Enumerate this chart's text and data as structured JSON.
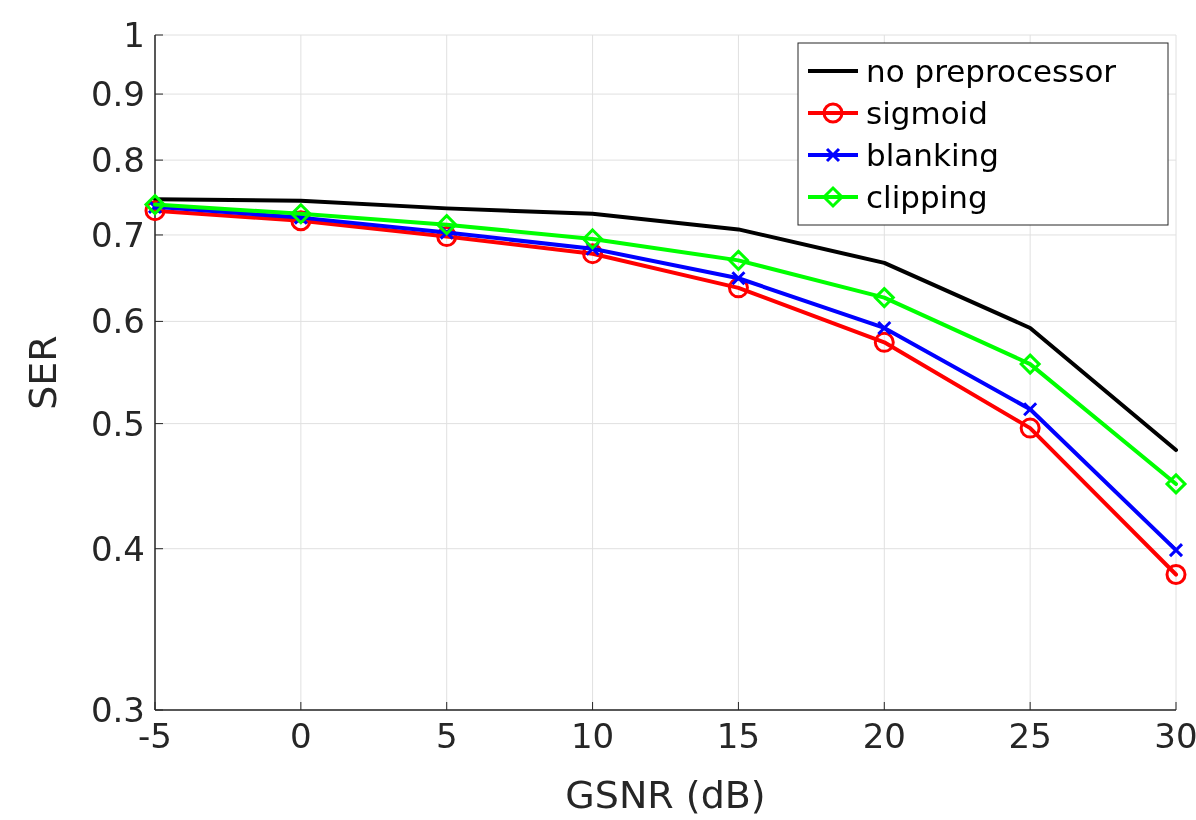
{
  "chart_data": {
    "type": "line",
    "xlabel": "GSNR (dB)",
    "ylabel": "SER",
    "x": [
      -5,
      0,
      5,
      10,
      15,
      20,
      25,
      30
    ],
    "series": [
      {
        "name": "no preprocessor",
        "color": "#000000",
        "marker": "none",
        "values": [
          0.746,
          0.744,
          0.734,
          0.727,
          0.707,
          0.666,
          0.593,
          0.477
        ]
      },
      {
        "name": "sigmoid",
        "color": "#ff0000",
        "marker": "circle",
        "values": [
          0.731,
          0.718,
          0.698,
          0.677,
          0.637,
          0.578,
          0.496,
          0.382
        ]
      },
      {
        "name": "blanking",
        "color": "#0000ff",
        "marker": "cross",
        "values": [
          0.736,
          0.722,
          0.703,
          0.683,
          0.648,
          0.593,
          0.513,
          0.399
        ]
      },
      {
        "name": "clipping",
        "color": "#00ff00",
        "marker": "diamond",
        "values": [
          0.739,
          0.727,
          0.713,
          0.695,
          0.669,
          0.626,
          0.556,
          0.449
        ]
      }
    ],
    "xlim": [
      -5,
      30
    ],
    "xticks": [
      -5,
      0,
      5,
      10,
      15,
      20,
      25,
      30
    ],
    "ylim": [
      0.3,
      1
    ],
    "yticks": [
      0.3,
      0.4,
      0.5,
      0.6,
      0.7,
      0.8,
      0.9,
      1
    ],
    "log": "y",
    "grid": true,
    "legend": "top right"
  }
}
